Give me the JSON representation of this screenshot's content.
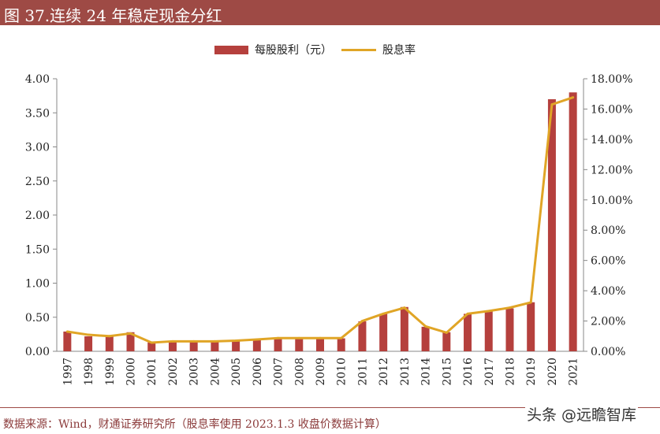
{
  "title": "图 37.连续 24 年稳定现金分红",
  "source": "数据来源：Wind，财通证券研究所（股息率使用 2023.1.3 收盘价数据计算）",
  "watermark": "头条 @远瞻智库",
  "colors": {
    "bar": "#b5403d",
    "line": "#e0a526",
    "title_bg": "#9e4a45"
  },
  "chart_data": {
    "type": "bar+line",
    "categories": [
      "1997",
      "1998",
      "1999",
      "2000",
      "2001",
      "2002",
      "2003",
      "2004",
      "2005",
      "2006",
      "2007",
      "2008",
      "2009",
      "2010",
      "2011",
      "2012",
      "2013",
      "2014",
      "2015",
      "2016",
      "2017",
      "2018",
      "2019",
      "2020",
      "2021"
    ],
    "series": [
      {
        "name": "每股股利（元）",
        "type": "bar",
        "axis": "left",
        "values": [
          0.29,
          0.22,
          0.22,
          0.28,
          0.13,
          0.14,
          0.14,
          0.15,
          0.15,
          0.17,
          0.19,
          0.19,
          0.19,
          0.19,
          0.44,
          0.55,
          0.65,
          0.36,
          0.28,
          0.55,
          0.59,
          0.63,
          0.72,
          3.7,
          3.8
        ]
      },
      {
        "name": "股息率",
        "type": "line",
        "axis": "right",
        "values": [
          1.3,
          1.09,
          1.0,
          1.18,
          0.57,
          0.66,
          0.66,
          0.66,
          0.7,
          0.78,
          0.87,
          0.87,
          0.87,
          0.87,
          2.0,
          2.48,
          2.88,
          1.65,
          1.23,
          2.48,
          2.66,
          2.88,
          3.23,
          16.3,
          16.77
        ]
      }
    ],
    "y_left": {
      "range": [
        0,
        4
      ],
      "ticks": [
        "0.00",
        "0.50",
        "1.00",
        "1.50",
        "2.00",
        "2.50",
        "3.00",
        "3.50",
        "4.00"
      ]
    },
    "y_right": {
      "range": [
        0,
        18
      ],
      "ticks": [
        "0.00%",
        "2.00%",
        "4.00%",
        "6.00%",
        "8.00%",
        "10.00%",
        "12.00%",
        "14.00%",
        "16.00%",
        "18.00%"
      ]
    },
    "grid": false,
    "legend": "top-center"
  }
}
